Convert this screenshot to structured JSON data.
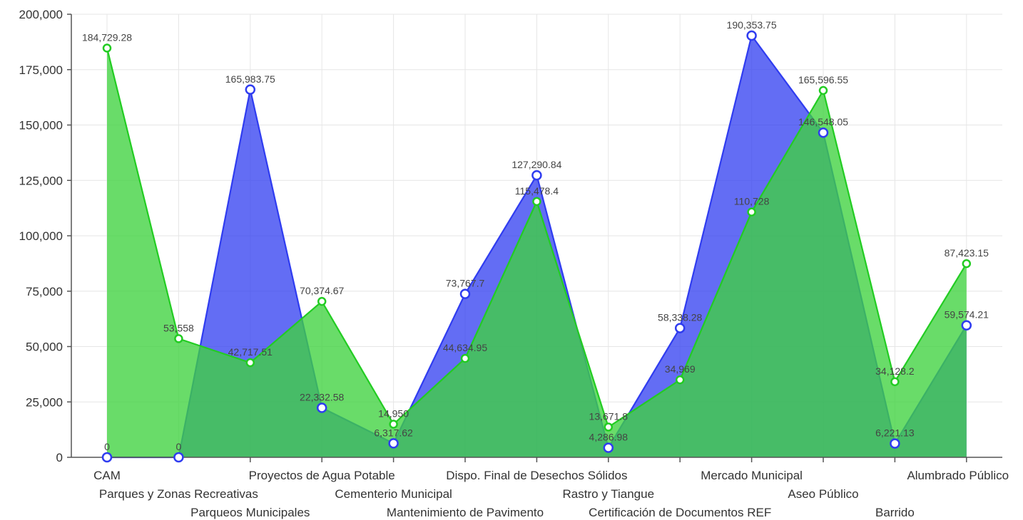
{
  "chart_data": {
    "type": "area",
    "categories": [
      "CAM",
      "Parques y Zonas Recreativas",
      "Parqueos Municipales",
      "Proyectos de Agua Potable",
      "Cementerio Municipal",
      "Mantenimiento de Pavimento",
      "Dispo. Final de Desechos Sólidos",
      "Rastro y Tiangue",
      "Certificación de Documentos REF",
      "Mercado Municipal",
      "Aseo Público",
      "Barrido",
      "Alumbrado Público"
    ],
    "series": [
      {
        "color": "#2f3cf0",
        "fill": "#2f3cf0",
        "values": [
          0,
          0,
          165983.75,
          22332.58,
          6317.62,
          73767.7,
          127290.84,
          4286.98,
          58338.28,
          190353.75,
          146548.05,
          6221.13,
          59574.21
        ],
        "labels": [
          "0",
          "0",
          "165,983.75",
          "22,332.58",
          "6,317.62",
          "73,767.7",
          "127,290.84",
          "4,286.98",
          "58,338.28",
          "190,353.75",
          "146,548.05",
          "6,221.13",
          "59,574.21"
        ]
      },
      {
        "color": "#22cc22",
        "fill": "#3fd23f",
        "values": [
          184729.28,
          53558,
          42717.51,
          70374.67,
          14950,
          44634.95,
          115478.4,
          13671.8,
          34969,
          110728,
          165596.55,
          34128.2,
          87423.15
        ],
        "labels": [
          "184,729.28",
          "53,558",
          "42,717.51",
          "70,374.67",
          "14,950",
          "44,634.95",
          "115,478.4",
          "13,671.8",
          "34,969",
          "110,728",
          "165,596.55",
          "34,128.2",
          "87,423.15"
        ]
      }
    ],
    "ylim": [
      0,
      200000
    ],
    "yticks": [
      0,
      25000,
      50000,
      75000,
      100000,
      125000,
      150000,
      175000,
      200000
    ],
    "ytick_labels": [
      "0",
      "25,000",
      "50,000",
      "75,000",
      "100,000",
      "125,000",
      "150,000",
      "175,000",
      "200,000"
    ],
    "grid": true,
    "legend": "none",
    "xlabel": "",
    "ylabel": "",
    "title": ""
  }
}
